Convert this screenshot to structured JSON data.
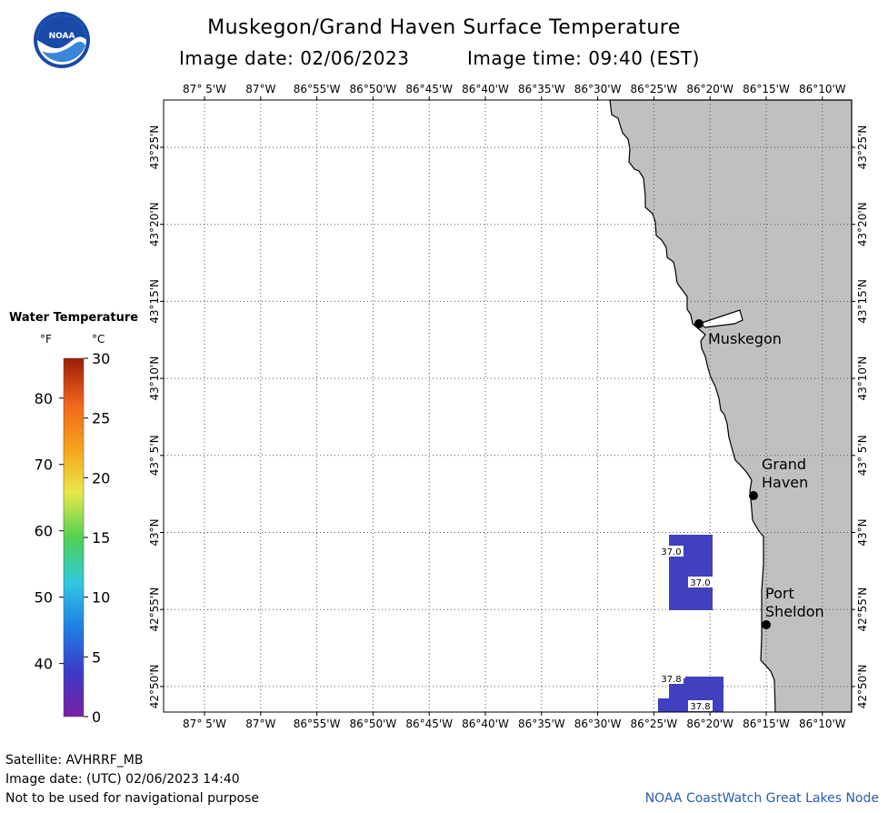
{
  "header": {
    "title": "Muskegon/Grand Haven Surface Temperature",
    "image_date": "Image date: 02/06/2023",
    "image_time": "Image time: 09:40 (EST)"
  },
  "logo": {
    "text": "NOAA"
  },
  "legend": {
    "title": "Water Temperature",
    "unit_f": "°F",
    "unit_c": "°C",
    "f_ticks": [
      "80",
      "70",
      "60",
      "50",
      "40"
    ],
    "c_ticks": [
      "30",
      "25",
      "20",
      "15",
      "10",
      "5",
      "0"
    ],
    "colors": [
      "#7a1fa2",
      "#3b3bc8",
      "#1f7fe6",
      "#2fc9e0",
      "#4fd24f",
      "#e8e84a",
      "#f7a11b",
      "#f0641a",
      "#9c1a08"
    ]
  },
  "map": {
    "lon_labels": [
      "87° 5'W",
      "87°W",
      "86°55'W",
      "86°50'W",
      "86°45'W",
      "86°40'W",
      "86°35'W",
      "86°30'W",
      "86°25'W",
      "86°20'W",
      "86°15'W",
      "86°10'W"
    ],
    "lat_labels": [
      "43°25'N",
      "43°20'N",
      "43°15'N",
      "43°10'N",
      "43° 5'N",
      "43°N",
      "42°55'N",
      "42°50'N"
    ],
    "land_color": "#c0c0c0",
    "water_color": "#ffffff",
    "data_color": "#4040c0",
    "cities": [
      {
        "name": "Muskegon",
        "lines": [
          "Muskegon"
        ]
      },
      {
        "name": "Grand Haven",
        "lines": [
          "Grand",
          "Haven"
        ]
      },
      {
        "name": "Port Sheldon",
        "lines": [
          "Port",
          "Sheldon"
        ]
      }
    ],
    "temp_labels": [
      "37.0",
      "37.0",
      "37.8",
      "37.8"
    ]
  },
  "footer": {
    "satellite": "Satellite: AVHRRF_MB",
    "utc_date": "Image date: (UTC) 02/06/2023  14:40",
    "disclaimer": "Not to be used for navigational purpose",
    "credit": "NOAA CoastWatch Great Lakes Node"
  }
}
